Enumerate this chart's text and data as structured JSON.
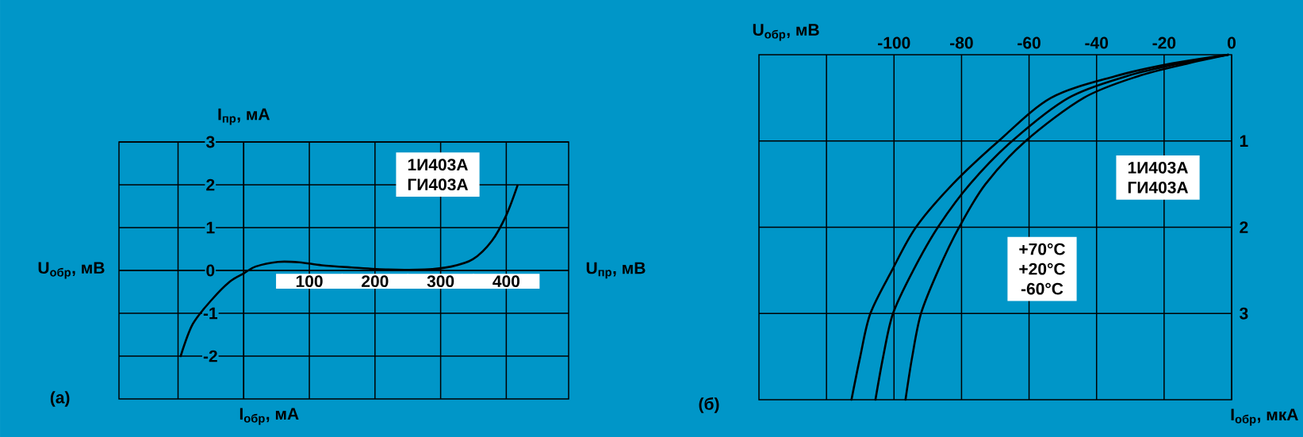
{
  "chart_data": [
    {
      "type": "line",
      "xlabel": "U$_{пр}$, мВ",
      "ylabel": "I$_{пр}$, мА",
      "xlim": [
        -190,
        495
      ],
      "ylim": [
        -3,
        3
      ],
      "xticks": [
        {
          "value": -100,
          "label": null
        },
        {
          "value": 0,
          "label": null
        },
        100,
        200,
        300,
        400
      ],
      "yticks": [
        -2,
        -1,
        0,
        1,
        2,
        3
      ],
      "grid": true,
      "series": [
        {
          "color": "#000000",
          "x": [
            -96,
            -77.5,
            -49,
            -21,
            0,
            18,
            52,
            85,
            119,
            164,
            220,
            276,
            316,
            349,
            378,
            400,
            417
          ],
          "values": [
            -2,
            -1.25,
            -0.69,
            -0.26,
            -0.07,
            0.09,
            0.2,
            0.19,
            0.12,
            0.07,
            0.02,
            0.02,
            0.09,
            0.26,
            0.69,
            1.29,
            1.98
          ]
        }
      ],
      "annotations": [
        "U$_{обр}$, мВ",
        "I$_{обр}$, мА",
        "1И403А",
        "ГИ403А",
        "(а)"
      ]
    },
    {
      "type": "line",
      "xlabel": "U$_{обр}$, мВ",
      "ylabel": "I$_{обр}$, мкА",
      "xlim": [
        -140,
        0
      ],
      "ylim": [
        4,
        0
      ],
      "xticks": [
        {
          "value": -120,
          "label": null
        },
        -100,
        -80,
        -60,
        -40,
        -20,
        0
      ],
      "yticks": [
        1,
        2,
        3
      ],
      "grid": true,
      "series": [
        {
          "color": "#000000",
          "x": [
            -1,
            -17.5,
            -34.6,
            -53.5,
            -69,
            -82.6,
            -93.5,
            -100.6,
            -107,
            -110,
            -112.6
          ],
          "values": [
            0,
            0.1,
            0.25,
            0.5,
            1,
            1.5,
            2,
            2.5,
            3,
            3.5,
            4
          ]
        },
        {
          "color": "#000000",
          "x": [
            -1,
            -15.2,
            -31.2,
            -48.3,
            -65,
            -77.5,
            -87,
            -94.3,
            -100.3,
            -103.2,
            -105.5
          ],
          "values": [
            0,
            0.1,
            0.25,
            0.5,
            1,
            1.5,
            2,
            2.5,
            3,
            3.5,
            4
          ]
        },
        {
          "color": "#000000",
          "x": [
            -1,
            -12.9,
            -27.8,
            -43.8,
            -61,
            -72.9,
            -80.7,
            -86.9,
            -92,
            -94.6,
            -96.6
          ],
          "values": [
            0,
            0.1,
            0.25,
            0.5,
            1,
            1.5,
            2,
            2.5,
            3,
            3.5,
            4
          ]
        }
      ],
      "annotations": [
        "1И403А",
        "ГИ403А",
        "+70°C",
        "+20°C",
        "-60°C",
        "(б)"
      ]
    }
  ]
}
